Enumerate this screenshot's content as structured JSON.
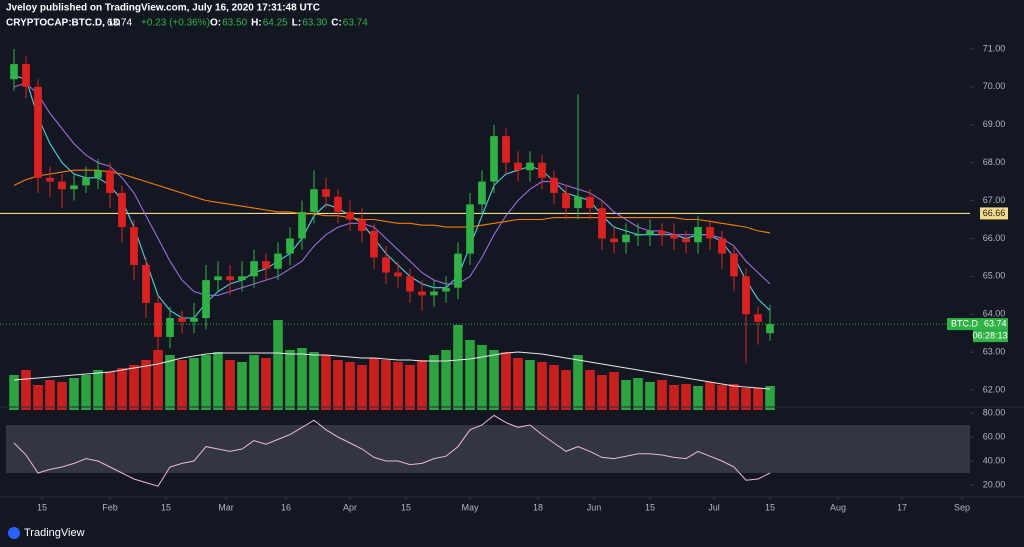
{
  "header": {
    "line1": "Jveloy published on TradingView.com, July 16, 2020 17:31:48 UTC",
    "symbol": "CRYPTOCAP:BTC.D, 1D",
    "price": "63.74",
    "change": "+0.23 (+0.36%)",
    "ohlc": [
      {
        "key": "O:",
        "value": "63.50"
      },
      {
        "key": "H:",
        "value": "64.25"
      },
      {
        "key": "L:",
        "value": "63.30"
      },
      {
        "key": "C:",
        "value": "63.74"
      }
    ]
  },
  "footer": {
    "brand": "TradingView"
  },
  "chart_data": {
    "type": "candlestick",
    "up_color": "#2fb344",
    "down_color": "#e0201f",
    "x": [
      7,
      10,
      13,
      16,
      19,
      22,
      25,
      28,
      31,
      34,
      37,
      40,
      43,
      46,
      49,
      52,
      55,
      58,
      61,
      64,
      67,
      70,
      73,
      76,
      79,
      82,
      85,
      88,
      91,
      94,
      97,
      100,
      103,
      106,
      109,
      112,
      115,
      118,
      121,
      124,
      127,
      130,
      133,
      136,
      139,
      142,
      145,
      148,
      151,
      154,
      157,
      160,
      163,
      166,
      169,
      172,
      175,
      178,
      181,
      184,
      187,
      190,
      193,
      196
    ],
    "open": [
      70.2,
      70.6,
      70.0,
      67.6,
      67.5,
      67.3,
      67.4,
      67.6,
      67.8,
      67.2,
      66.3,
      65.3,
      64.3,
      63.4,
      63.9,
      63.8,
      63.9,
      64.9,
      65.0,
      64.9,
      65.0,
      65.4,
      65.2,
      65.6,
      66.0,
      66.7,
      67.3,
      67.1,
      66.7,
      66.5,
      66.2,
      65.5,
      65.1,
      65.0,
      64.6,
      64.5,
      64.6,
      64.7,
      65.6,
      66.9,
      67.5,
      68.7,
      68.0,
      67.8,
      68.0,
      67.6,
      67.2,
      66.8,
      67.1,
      66.8,
      66.0,
      65.9,
      66.1,
      66.1,
      66.2,
      66.1,
      66.0,
      65.9,
      66.3,
      66.0,
      65.6,
      65.0,
      64.0,
      63.5
    ],
    "high": [
      71.0,
      70.8,
      70.2,
      67.9,
      67.7,
      67.7,
      67.9,
      68.1,
      68.0,
      67.4,
      66.5,
      65.5,
      64.5,
      64.2,
      64.1,
      64.3,
      65.3,
      65.4,
      65.3,
      65.4,
      65.7,
      65.6,
      65.9,
      66.3,
      67.0,
      67.8,
      67.6,
      67.3,
      67.0,
      66.8,
      66.4,
      65.8,
      65.4,
      65.2,
      64.9,
      64.9,
      65.0,
      65.9,
      67.2,
      67.8,
      69.0,
      68.9,
      68.3,
      68.3,
      68.2,
      67.8,
      67.4,
      69.8,
      67.3,
      67.0,
      66.3,
      66.4,
      66.4,
      66.5,
      66.4,
      66.4,
      66.2,
      66.6,
      66.5,
      66.2,
      65.8,
      65.2,
      64.2,
      64.25
    ],
    "low": [
      69.9,
      69.7,
      67.2,
      67.1,
      66.8,
      67.0,
      67.2,
      67.3,
      66.8,
      65.9,
      64.9,
      63.9,
      63.0,
      63.1,
      63.5,
      63.5,
      63.6,
      64.6,
      64.5,
      64.6,
      64.7,
      64.9,
      64.9,
      65.3,
      65.7,
      66.4,
      66.8,
      66.4,
      66.2,
      65.9,
      65.2,
      64.8,
      64.7,
      64.3,
      64.1,
      64.2,
      64.3,
      64.4,
      65.3,
      66.6,
      67.2,
      67.7,
      67.5,
      67.5,
      67.3,
      66.9,
      66.5,
      66.5,
      66.5,
      65.7,
      65.6,
      65.6,
      65.8,
      65.8,
      65.8,
      65.7,
      65.6,
      65.6,
      65.7,
      65.2,
      64.6,
      62.7,
      63.2,
      63.3
    ],
    "close": [
      70.6,
      70.0,
      67.6,
      67.5,
      67.3,
      67.4,
      67.6,
      67.8,
      67.2,
      66.3,
      65.3,
      64.3,
      63.4,
      63.9,
      63.8,
      63.9,
      64.9,
      65.0,
      64.9,
      65.0,
      65.4,
      65.2,
      65.6,
      66.0,
      66.7,
      67.3,
      67.1,
      66.7,
      66.5,
      66.2,
      65.5,
      65.1,
      65.0,
      64.6,
      64.5,
      64.6,
      64.7,
      65.6,
      66.9,
      67.5,
      68.7,
      68.0,
      67.8,
      68.0,
      67.6,
      67.2,
      66.8,
      67.1,
      66.8,
      66.0,
      65.9,
      66.1,
      66.1,
      66.2,
      66.1,
      66.0,
      65.9,
      66.3,
      66.0,
      65.6,
      65.0,
      64.0,
      63.8,
      63.74
    ],
    "moving_averages": [
      {
        "color": "#4dd0e1",
        "values": [
          70.3,
          70.2,
          69.2,
          68.5,
          68.0,
          67.7,
          67.6,
          67.6,
          67.4,
          67.0,
          66.3,
          65.4,
          64.5,
          64.1,
          63.9,
          63.9,
          64.3,
          64.6,
          64.8,
          64.9,
          65.1,
          65.2,
          65.4,
          65.6,
          66.0,
          66.6,
          66.9,
          66.8,
          66.6,
          66.4,
          66.0,
          65.6,
          65.3,
          65.0,
          64.8,
          64.7,
          64.7,
          65.0,
          65.8,
          66.6,
          67.4,
          67.7,
          67.8,
          67.9,
          67.8,
          67.5,
          67.2,
          67.1,
          67.0,
          66.6,
          66.3,
          66.2,
          66.1,
          66.1,
          66.1,
          66.1,
          66.0,
          66.1,
          66.1,
          65.9,
          65.5,
          64.9,
          64.4,
          64.1
        ]
      },
      {
        "color": "#9c6ade",
        "values": [
          70.0,
          70.1,
          69.8,
          69.3,
          68.9,
          68.5,
          68.2,
          68.0,
          67.9,
          67.6,
          67.2,
          66.6,
          66.0,
          65.4,
          64.9,
          64.6,
          64.5,
          64.5,
          64.6,
          64.7,
          64.8,
          64.9,
          65.0,
          65.2,
          65.4,
          65.8,
          66.1,
          66.3,
          66.4,
          66.4,
          66.3,
          66.0,
          65.7,
          65.4,
          65.1,
          64.9,
          64.8,
          64.8,
          65.0,
          65.5,
          66.1,
          66.6,
          67.0,
          67.3,
          67.5,
          67.5,
          67.4,
          67.3,
          67.2,
          67.0,
          66.7,
          66.5,
          66.3,
          66.2,
          66.2,
          66.1,
          66.1,
          66.1,
          66.1,
          66.0,
          65.8,
          65.4,
          65.1,
          64.8
        ]
      },
      {
        "color": "#f57c00",
        "values": [
          67.4,
          67.55,
          67.65,
          67.7,
          67.75,
          67.8,
          67.8,
          67.8,
          67.75,
          67.7,
          67.6,
          67.5,
          67.4,
          67.3,
          67.2,
          67.1,
          67.0,
          66.95,
          66.9,
          66.85,
          66.8,
          66.75,
          66.7,
          66.7,
          66.65,
          66.65,
          66.6,
          66.6,
          66.55,
          66.5,
          66.5,
          66.45,
          66.4,
          66.4,
          66.35,
          66.35,
          66.3,
          66.3,
          66.3,
          66.35,
          66.4,
          66.45,
          66.5,
          66.5,
          66.5,
          66.55,
          66.55,
          66.55,
          66.55,
          66.55,
          66.55,
          66.55,
          66.55,
          66.55,
          66.55,
          66.55,
          66.5,
          66.5,
          66.45,
          66.4,
          66.35,
          66.3,
          66.2,
          66.15
        ]
      }
    ],
    "hlines": [
      {
        "value": 66.66,
        "color": "#f5d98a"
      }
    ],
    "last_price": {
      "symbol": "BTC.D",
      "countdown": "06:28:13",
      "color": "#2fb344"
    },
    "xlim": [
      3.5,
      239.75
    ],
    "xticks": [
      {
        "value": 14,
        "label": "15"
      },
      {
        "value": 31,
        "label": "Feb"
      },
      {
        "value": 45,
        "label": "15"
      },
      {
        "value": 60,
        "label": "Mar"
      },
      {
        "value": 75,
        "label": "16"
      },
      {
        "value": 91,
        "label": "Apr"
      },
      {
        "value": 105,
        "label": "15"
      },
      {
        "value": 121,
        "label": "May"
      },
      {
        "value": 138,
        "label": "18"
      },
      {
        "value": 152,
        "label": "Jun"
      },
      {
        "value": 166,
        "label": "15"
      },
      {
        "value": 182,
        "label": "Jul"
      },
      {
        "value": 196,
        "label": "15"
      },
      {
        "value": 213,
        "label": "Aug"
      },
      {
        "value": 229,
        "label": "17"
      },
      {
        "value": 244,
        "label": "Sep"
      }
    ],
    "ylim": [
      61.5,
      71.5
    ],
    "yticks": [
      {
        "value": 71,
        "label": "71.00"
      },
      {
        "value": 70,
        "label": "70.00"
      },
      {
        "value": 69,
        "label": "69.00"
      },
      {
        "value": 68,
        "label": "68.00"
      },
      {
        "value": 67,
        "label": "67.00"
      },
      {
        "value": 66,
        "label": "66.00"
      },
      {
        "value": 65,
        "label": "65.00"
      },
      {
        "value": 64,
        "label": "64.00"
      },
      {
        "value": 63,
        "label": "63.00"
      },
      {
        "value": 62,
        "label": "62.00"
      }
    ],
    "volume": {
      "ylim": [
        0,
        100
      ],
      "ma_color": "#e8e8e8",
      "values": [
        35,
        40,
        25,
        30,
        28,
        32,
        35,
        40,
        38,
        42,
        45,
        50,
        60,
        55,
        50,
        52,
        55,
        58,
        50,
        48,
        55,
        52,
        90,
        60,
        62,
        58,
        55,
        50,
        48,
        45,
        52,
        50,
        48,
        45,
        50,
        55,
        60,
        85,
        70,
        65,
        60,
        58,
        52,
        50,
        48,
        45,
        40,
        55,
        40,
        35,
        38,
        30,
        32,
        28,
        30,
        25,
        26,
        24,
        28,
        25,
        26,
        22,
        22,
        24
      ],
      "ma": [
        30,
        31,
        32,
        33,
        34,
        35,
        36,
        37,
        38,
        40,
        42,
        44,
        46,
        49,
        52,
        54,
        56,
        57,
        57,
        57,
        57,
        57,
        57,
        56,
        56,
        55,
        55,
        54,
        53,
        52,
        52,
        51,
        50,
        50,
        49,
        49,
        49,
        50,
        51,
        53,
        55,
        57,
        58,
        57,
        56,
        54,
        52,
        50,
        48,
        46,
        44,
        42,
        40,
        38,
        36,
        34,
        32,
        30,
        28,
        26,
        24,
        23,
        22,
        21
      ]
    },
    "rsi": {
      "ylim": [
        10.8,
        85
      ],
      "band": [
        30,
        70
      ],
      "color": "#f3b6d2",
      "yticks": [
        {
          "value": 80,
          "label": "80.00"
        },
        {
          "value": 60,
          "label": "60.00"
        },
        {
          "value": 40,
          "label": "40.00"
        },
        {
          "value": 20,
          "label": "20.00"
        }
      ],
      "values": [
        55,
        45,
        30,
        33,
        35,
        38,
        42,
        40,
        35,
        30,
        25,
        22,
        19,
        35,
        38,
        40,
        52,
        50,
        48,
        50,
        57,
        54,
        58,
        62,
        68,
        74,
        66,
        60,
        55,
        50,
        43,
        40,
        40,
        37,
        38,
        42,
        44,
        52,
        66,
        70,
        78,
        72,
        68,
        70,
        62,
        55,
        48,
        52,
        48,
        43,
        42,
        44,
        46,
        46,
        45,
        43,
        42,
        48,
        44,
        40,
        35,
        24,
        25,
        30
      ]
    }
  }
}
